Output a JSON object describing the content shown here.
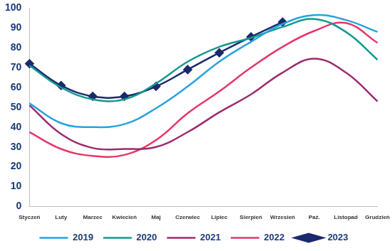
{
  "chart_data": {
    "type": "line",
    "categories": [
      "Styczeń",
      "Luty",
      "Marzec",
      "Kwiecień",
      "Maj",
      "Czerwiec",
      "Lipiec",
      "Sierpień",
      "Wrzesień",
      "Paź.",
      "Listopad",
      "Grudzień"
    ],
    "series": [
      {
        "name": "2019",
        "color": "#27a3dd",
        "marker": "none",
        "values": [
          52,
          42,
          40,
          41.5,
          49.5,
          60.5,
          73,
          83,
          92,
          96.5,
          94,
          88
        ]
      },
      {
        "name": "2020",
        "color": "#13998d",
        "marker": "none",
        "values": [
          71,
          60,
          54,
          54,
          62,
          73,
          80.5,
          85,
          90.5,
          94.5,
          88,
          74
        ]
      },
      {
        "name": "2021",
        "color": "#9c2b6e",
        "marker": "none",
        "values": [
          51,
          36.5,
          29.5,
          29,
          30,
          37.5,
          47.5,
          56.5,
          67.5,
          74.5,
          67.5,
          53
        ]
      },
      {
        "name": "2022",
        "color": "#e83468",
        "marker": "none",
        "values": [
          37.5,
          29,
          25.5,
          26,
          33.5,
          47,
          58,
          70,
          80.5,
          88.5,
          92.5,
          82.5
        ]
      },
      {
        "name": "2023",
        "color": "#1a2a6c",
        "marker": "diamond",
        "values": [
          72,
          61,
          55.5,
          55.5,
          60.5,
          69,
          77.5,
          85.5,
          93,
          null,
          null,
          null
        ]
      }
    ],
    "ylim": [
      0,
      100
    ],
    "yticks": [
      0,
      10,
      20,
      30,
      40,
      50,
      60,
      70,
      80,
      90,
      100
    ],
    "grid": false,
    "legend": "bottom"
  }
}
